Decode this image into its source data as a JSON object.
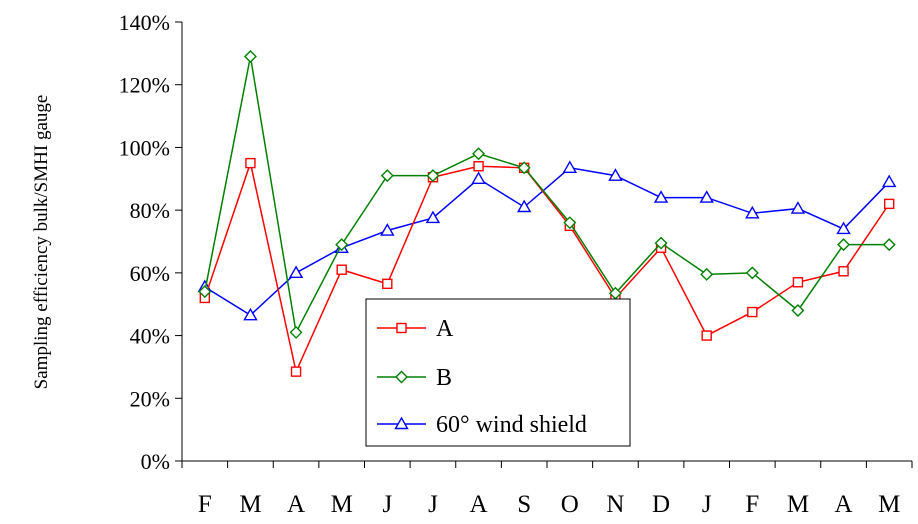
{
  "chart_data": {
    "type": "line",
    "title": "",
    "xlabel": "",
    "ylabel": "Sampling efficiency bulk/SMHI gauge",
    "ylim": [
      0,
      140
    ],
    "yticks": [
      "0%",
      "20%",
      "40%",
      "60%",
      "80%",
      "100%",
      "120%",
      "140%"
    ],
    "grid": false,
    "legend_position": "bottom-center",
    "categories": [
      "F",
      "M",
      "A",
      "M",
      "J",
      "J",
      "A",
      "S",
      "O",
      "N",
      "D",
      "J",
      "F",
      "M",
      "A",
      "M"
    ],
    "series": [
      {
        "name": "A",
        "color": "#ff0000",
        "marker": "square",
        "values": [
          52,
          95,
          28.5,
          61,
          56.5,
          90.5,
          94,
          93.5,
          75,
          52,
          68,
          40,
          47.5,
          57,
          60.5,
          82
        ]
      },
      {
        "name": "B",
        "color": "#008000",
        "marker": "diamond",
        "values": [
          54,
          129,
          41,
          69,
          91,
          91,
          98,
          93.5,
          76,
          53.5,
          69.5,
          59.5,
          60,
          48,
          69,
          69
        ]
      },
      {
        "name": "60° wind shield",
        "color": "#0000ff",
        "marker": "triangle",
        "values": [
          55.5,
          46.5,
          60,
          68,
          73.5,
          77.5,
          90,
          81,
          93.5,
          91,
          84,
          84,
          79,
          80.5,
          74,
          89
        ]
      }
    ]
  }
}
